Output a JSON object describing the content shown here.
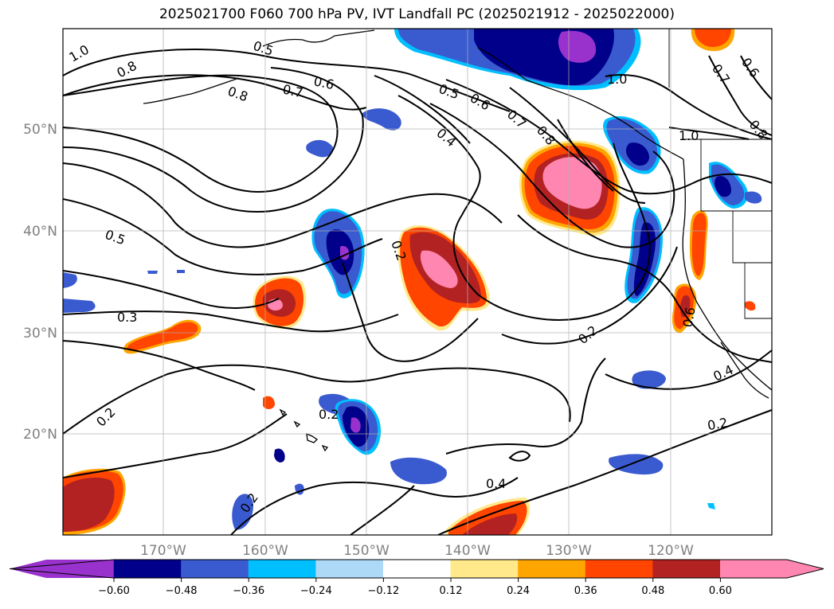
{
  "title": "2025021700 F060 700 hPa PV, IVT Landfall PC (2025021912 - 2025022000)",
  "latitude_labels": [
    "50°N",
    "40°N",
    "30°N",
    "20°N"
  ],
  "longitude_labels": [
    "170°W",
    "160°W",
    "150°W",
    "140°W",
    "130°W",
    "120°W"
  ],
  "contour_labels": [
    "1.0",
    "0.8",
    "0.5",
    "0.6",
    "0.7",
    "0.8",
    "0.5",
    "0.6",
    "0.4",
    "0.7",
    "0.8",
    "1.0",
    "1.0",
    "0.7",
    "0.6",
    "0.8",
    "0.5",
    "0.2",
    "0.3",
    "0.2",
    "0.2",
    "0.4",
    "0.6",
    "0.2",
    "0.2",
    "0.4",
    "0.2"
  ],
  "colorbar": {
    "ticks": [
      "−0.60",
      "−0.48",
      "−0.36",
      "−0.24",
      "−0.12",
      "0.12",
      "0.24",
      "0.36",
      "0.48",
      "0.60"
    ],
    "colors": [
      "#9932cc",
      "#00008b",
      "#3a5bd0",
      "#00bfff",
      "#add8f6",
      "#ffffff",
      "#ffe98a",
      "#ffa500",
      "#ff4500",
      "#b22222",
      "#ff86b0"
    ]
  },
  "shading_colors": {
    "neg_strong": "#9932cc",
    "neg_high": "#00008b",
    "neg_mid": "#3a5bd0",
    "neg_low": "#00bfff",
    "neg_faint": "#add8f6",
    "pos_faint": "#ffe98a",
    "pos_low": "#ffa500",
    "pos_mid": "#ff4500",
    "pos_high": "#b22222",
    "pos_strong": "#ff86b0"
  }
}
